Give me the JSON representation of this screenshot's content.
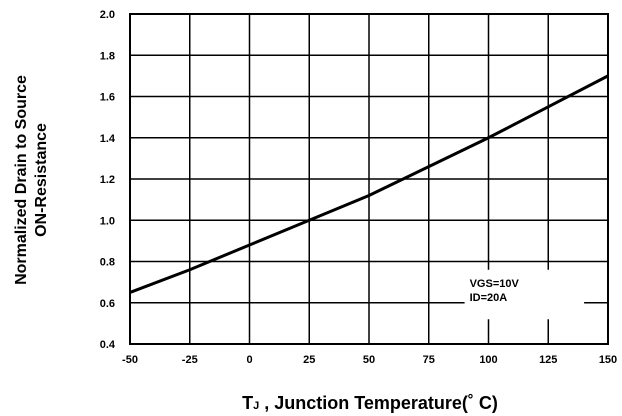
{
  "chart_data": {
    "type": "line",
    "title": "",
    "xlabel_main": "T",
    "xlabel_sub": "J",
    "xlabel_rest": " , Junction Temperature(˚ C)",
    "ylabel_line1": "Normalized Drain to Source",
    "ylabel_line2": "ON-Resistance",
    "xlim": [
      -50,
      150
    ],
    "ylim": [
      0.4,
      2.0
    ],
    "xticks": [
      "-50",
      "-25",
      "0",
      "25",
      "50",
      "75",
      "100",
      "125",
      "150"
    ],
    "yticks": [
      "0.4",
      "0.6",
      "0.8",
      "1.0",
      "1.2",
      "1.4",
      "1.6",
      "1.8",
      "2.0"
    ],
    "grid": true,
    "annotation_line1": "VGS=10V",
    "annotation_line2": "ID=20A",
    "series": [
      {
        "x": [
          -50,
          -25,
          0,
          25,
          50,
          75,
          100,
          125,
          150
        ],
        "y": [
          0.65,
          0.76,
          0.88,
          1.0,
          1.12,
          1.26,
          1.4,
          1.55,
          1.7
        ]
      }
    ]
  }
}
